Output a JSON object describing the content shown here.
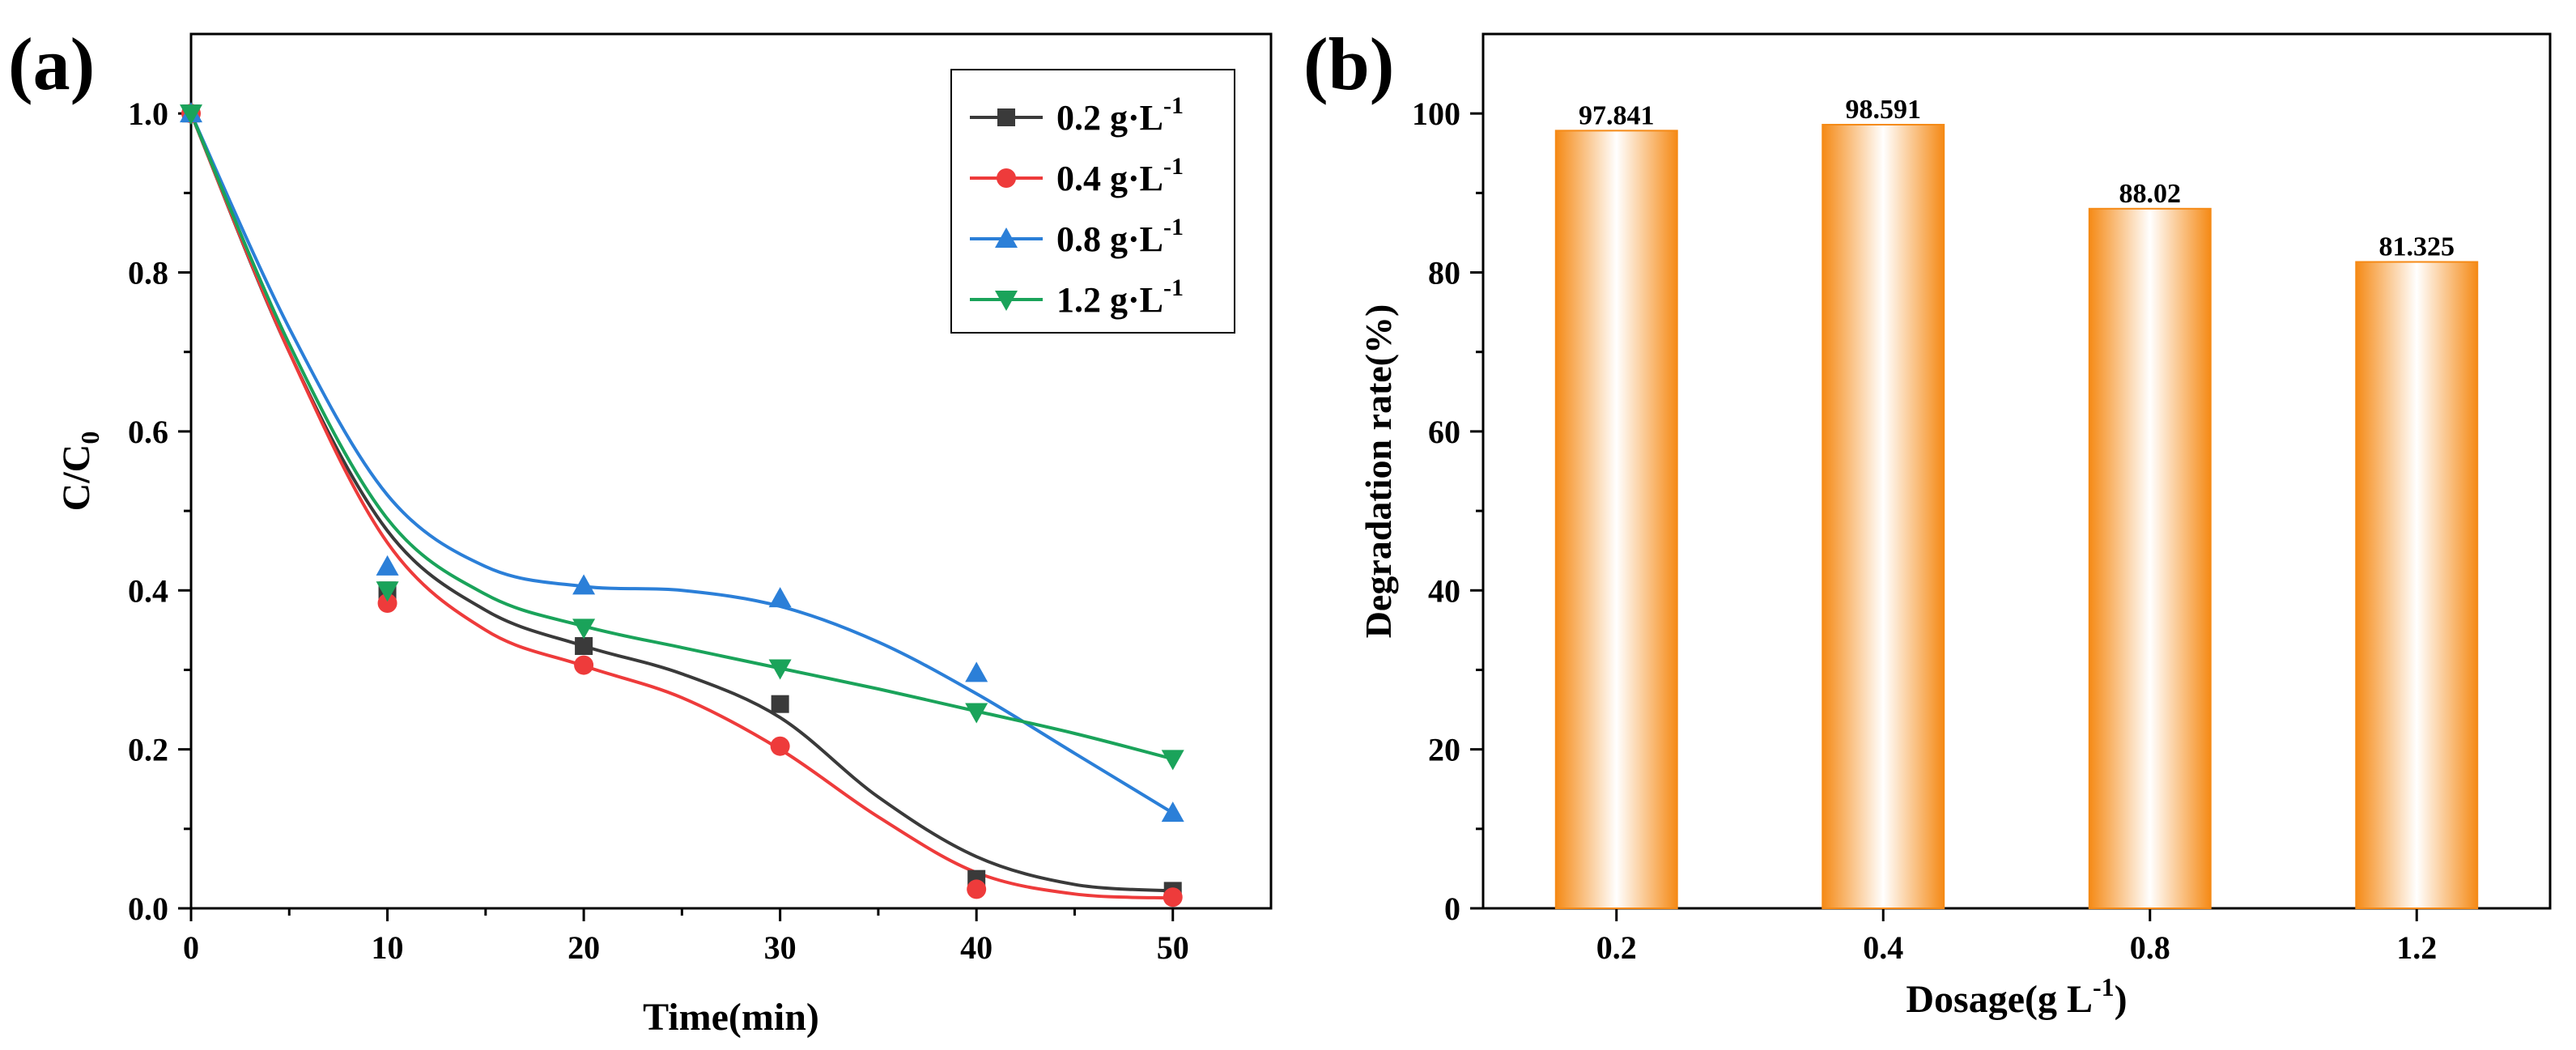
{
  "panel_a_label": "(a)",
  "panel_b_label": "(b)",
  "chart_data": [
    {
      "panel": "(a)",
      "type": "line",
      "title": "",
      "xlabel": "Time(min)",
      "ylabel": "C/C",
      "ylabel_sub": "0",
      "xlim": [
        0,
        55
      ],
      "ylim": [
        0,
        1.1
      ],
      "xticks": [
        0,
        10,
        20,
        30,
        40,
        50
      ],
      "yticks": [
        0.0,
        0.2,
        0.4,
        0.6,
        0.8,
        1.0
      ],
      "tick_labels_x": [
        "0",
        "10",
        "20",
        "30",
        "40",
        "50"
      ],
      "tick_labels_y": [
        "0.0",
        "0.2",
        "0.4",
        "0.6",
        "0.8",
        "1.0"
      ],
      "legend_position": "top-right",
      "x": [
        0,
        10,
        20,
        30,
        40,
        50
      ],
      "series": [
        {
          "name": "0.2 g·L",
          "superscript": "-1",
          "color": "#3a3a3a",
          "marker": "square",
          "values": [
            1.0,
            0.4,
            0.33,
            0.257,
            0.037,
            0.022
          ],
          "fit": [
            [
              0,
              1.0
            ],
            [
              5,
              0.7
            ],
            [
              10,
              0.475
            ],
            [
              15,
              0.375
            ],
            [
              20,
              0.33
            ],
            [
              25,
              0.295
            ],
            [
              30,
              0.24
            ],
            [
              35,
              0.14
            ],
            [
              40,
              0.065
            ],
            [
              45,
              0.03
            ],
            [
              50,
              0.022
            ]
          ]
        },
        {
          "name": "0.4 g·L",
          "superscript": "-1",
          "color": "#ee3b3b",
          "marker": "circle",
          "values": [
            1.0,
            0.384,
            0.306,
            0.204,
            0.024,
            0.014
          ],
          "fit": [
            [
              0,
              1.0
            ],
            [
              5,
              0.7
            ],
            [
              10,
              0.46
            ],
            [
              15,
              0.35
            ],
            [
              20,
              0.305
            ],
            [
              25,
              0.265
            ],
            [
              30,
              0.2
            ],
            [
              35,
              0.115
            ],
            [
              40,
              0.045
            ],
            [
              45,
              0.018
            ],
            [
              50,
              0.013
            ]
          ]
        },
        {
          "name": "0.8 g·L",
          "superscript": "-1",
          "color": "#2b7fd8",
          "marker": "triangle-up",
          "values": [
            1.0,
            0.43,
            0.406,
            0.39,
            0.296,
            0.12
          ],
          "fit": [
            [
              0,
              1.0
            ],
            [
              5,
              0.73
            ],
            [
              10,
              0.52
            ],
            [
              15,
              0.43
            ],
            [
              20,
              0.405
            ],
            [
              25,
              0.4
            ],
            [
              30,
              0.38
            ],
            [
              35,
              0.335
            ],
            [
              40,
              0.27
            ],
            [
              45,
              0.195
            ],
            [
              50,
              0.12
            ]
          ]
        },
        {
          "name": "1.2 g·L",
          "superscript": "-1",
          "color": "#1aa35a",
          "marker": "triangle-down",
          "values": [
            1.0,
            0.4,
            0.353,
            0.302,
            0.247,
            0.188
          ],
          "fit": [
            [
              0,
              1.0
            ],
            [
              5,
              0.71
            ],
            [
              10,
              0.49
            ],
            [
              15,
              0.395
            ],
            [
              20,
              0.355
            ],
            [
              25,
              0.328
            ],
            [
              30,
              0.302
            ],
            [
              35,
              0.276
            ],
            [
              40,
              0.248
            ],
            [
              45,
              0.22
            ],
            [
              50,
              0.188
            ]
          ]
        }
      ]
    },
    {
      "panel": "(b)",
      "type": "bar",
      "title": "",
      "xlabel": "Dosage(g L",
      "xlabel_sup": "-1",
      "xlabel_close": ")",
      "ylabel": "Degradation rate(%)",
      "categories": [
        "0.2",
        "0.4",
        "0.8",
        "1.2"
      ],
      "values": [
        97.841,
        98.591,
        88.02,
        81.325
      ],
      "value_labels": [
        "97.841",
        "98.591",
        "88.02",
        "81.325"
      ],
      "ylim": [
        0,
        110
      ],
      "yticks": [
        0,
        20,
        40,
        60,
        80,
        100
      ],
      "tick_labels_y": [
        "0",
        "20",
        "40",
        "60",
        "80",
        "100"
      ],
      "bar_color": "#f58a16"
    }
  ]
}
